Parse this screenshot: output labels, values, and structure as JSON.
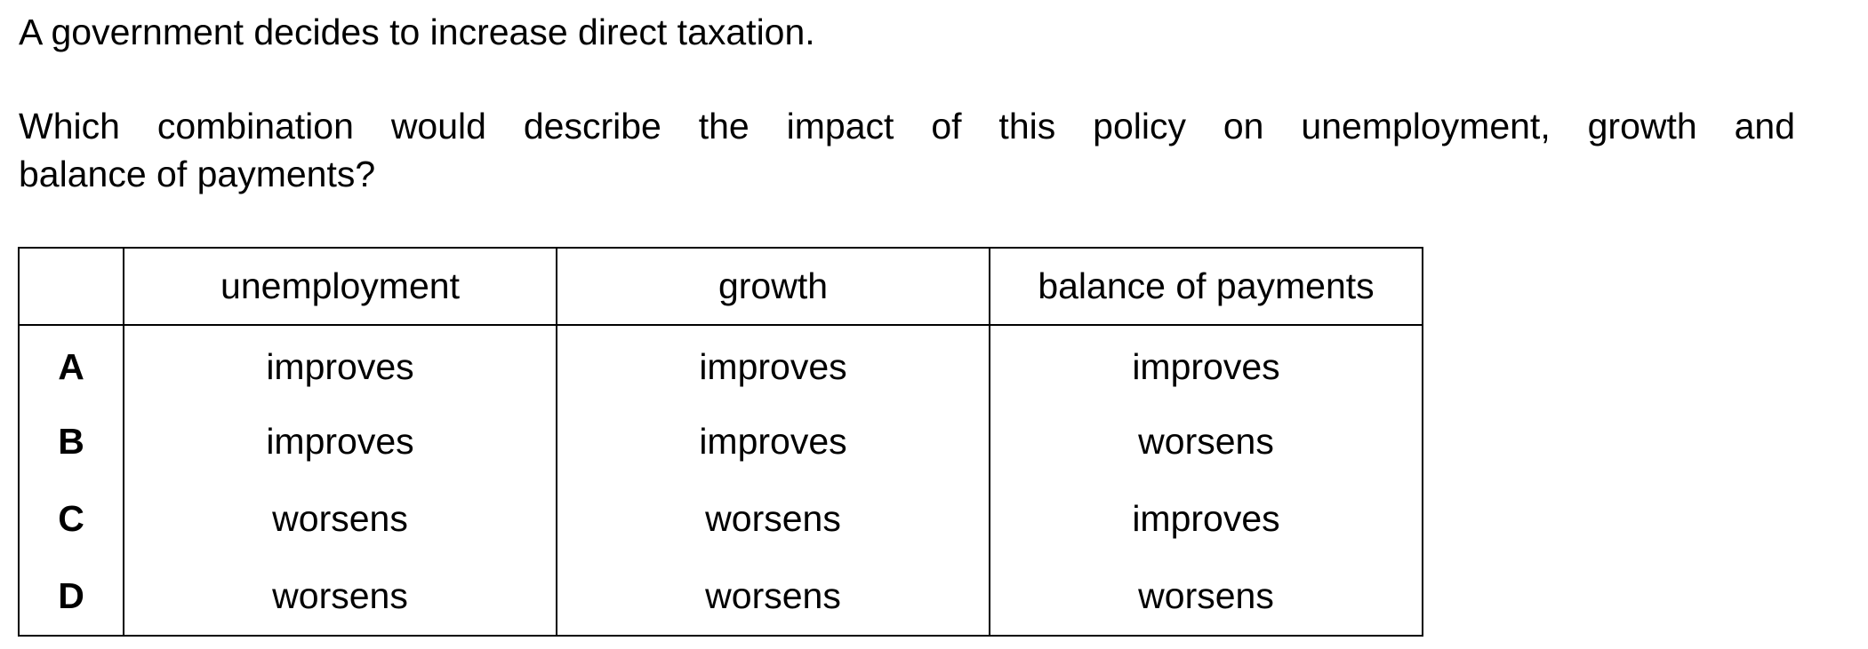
{
  "question": {
    "line1": "A government decides to increase direct taxation.",
    "line2": "Which combination would describe the impact of this policy on unemployment, growth and",
    "line3": "balance of payments?"
  },
  "table": {
    "headers": [
      "",
      "unemployment",
      "growth",
      "balance of payments"
    ],
    "rows": [
      {
        "option": "A",
        "cells": [
          "improves",
          "improves",
          "improves"
        ]
      },
      {
        "option": "B",
        "cells": [
          "improves",
          "improves",
          "worsens"
        ]
      },
      {
        "option": "C",
        "cells": [
          "worsens",
          "worsens",
          "improves"
        ]
      },
      {
        "option": "D",
        "cells": [
          "worsens",
          "worsens",
          "worsens"
        ]
      }
    ]
  }
}
